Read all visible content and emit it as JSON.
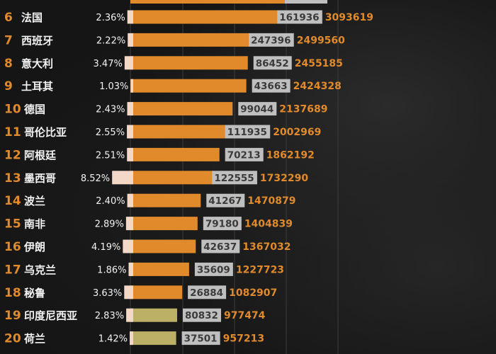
{
  "chart_data": {
    "type": "bar",
    "orientation": "horizontal",
    "grid": true,
    "colors": {
      "bar": "#e08a2c",
      "bar_highlight": "#bcb066",
      "pct_bar": "#f3d8c8",
      "cases_label_bg": "#bfbfbf",
      "rank_text": "#e08a2c",
      "total_text": "#e08a2c"
    },
    "rows": [
      {
        "rank": "6",
        "name": "法国",
        "pct": "2.36%",
        "pct_value": 2.36,
        "value": 161936,
        "total": 3093619,
        "highlight": false
      },
      {
        "rank": "7",
        "name": "西班牙",
        "pct": "2.22%",
        "pct_value": 2.22,
        "value": 247396,
        "total": 2499560,
        "highlight": false
      },
      {
        "rank": "8",
        "name": "意大利",
        "pct": "3.47%",
        "pct_value": 3.47,
        "value": 86452,
        "total": 2455185,
        "highlight": false
      },
      {
        "rank": "9",
        "name": "土耳其",
        "pct": "1.03%",
        "pct_value": 1.03,
        "value": 43663,
        "total": 2424328,
        "highlight": false
      },
      {
        "rank": "10",
        "name": "德国",
        "pct": "2.43%",
        "pct_value": 2.43,
        "value": 99044,
        "total": 2137689,
        "highlight": false
      },
      {
        "rank": "11",
        "name": "哥伦比亚",
        "pct": "2.55%",
        "pct_value": 2.55,
        "value": 111935,
        "total": 2002969,
        "highlight": false
      },
      {
        "rank": "12",
        "name": "阿根廷",
        "pct": "2.51%",
        "pct_value": 2.51,
        "value": 70213,
        "total": 1862192,
        "highlight": false
      },
      {
        "rank": "13",
        "name": "墨西哥",
        "pct": "8.52%",
        "pct_value": 8.52,
        "value": 122555,
        "total": 1732290,
        "highlight": false
      },
      {
        "rank": "14",
        "name": "波兰",
        "pct": "2.40%",
        "pct_value": 2.4,
        "value": 41267,
        "total": 1470879,
        "highlight": false
      },
      {
        "rank": "15",
        "name": "南非",
        "pct": "2.89%",
        "pct_value": 2.89,
        "value": 79180,
        "total": 1404839,
        "highlight": false
      },
      {
        "rank": "16",
        "name": "伊朗",
        "pct": "4.19%",
        "pct_value": 4.19,
        "value": 42637,
        "total": 1367032,
        "highlight": false
      },
      {
        "rank": "17",
        "name": "乌克兰",
        "pct": "1.86%",
        "pct_value": 1.86,
        "value": 35609,
        "total": 1227723,
        "highlight": false
      },
      {
        "rank": "18",
        "name": "秘鲁",
        "pct": "3.63%",
        "pct_value": 3.63,
        "value": 26884,
        "total": 1082907,
        "highlight": false
      },
      {
        "rank": "19",
        "name": "印度尼西亚",
        "pct": "2.83%",
        "pct_value": 2.83,
        "value": 80832,
        "total": 977474,
        "highlight": true
      },
      {
        "rank": "20",
        "name": "荷兰",
        "pct": "1.42%",
        "pct_value": 1.42,
        "value": 37501,
        "total": 957213,
        "highlight": true
      }
    ]
  }
}
